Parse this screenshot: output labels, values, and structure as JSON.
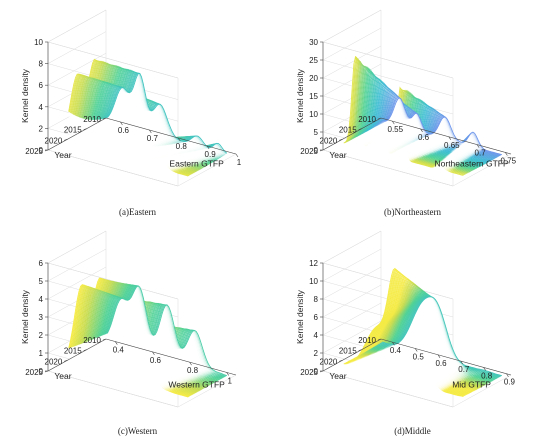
{
  "chart_data": [
    {
      "type": "surface3d",
      "caption": "(a)Eastern",
      "xlabel": "Eastern GTFP",
      "ylabel": "Year",
      "zlabel": "Kernel density",
      "x_ticks": [
        "0.6",
        "0.7",
        "0.8",
        "0.9",
        "1"
      ],
      "y_ticks": [
        "2010",
        "2015",
        "2020",
        "2025"
      ],
      "z_ticks": [
        "0",
        "2",
        "4",
        "6",
        "8",
        "10"
      ],
      "xlim": [
        0.55,
        1.0
      ],
      "ylim": [
        2010,
        2025
      ],
      "zlim": [
        0,
        10
      ],
      "years": [
        2011,
        2021
      ],
      "peaks_start": [
        {
          "x": 0.62,
          "h": 3.5,
          "w": 0.025
        },
        {
          "x": 0.68,
          "h": 5.0,
          "w": 0.02
        },
        {
          "x": 0.75,
          "h": 3.0,
          "w": 0.025
        },
        {
          "x": 0.88,
          "h": 1.0,
          "w": 0.02
        },
        {
          "x": 0.95,
          "h": 0.8,
          "w": 0.015
        }
      ],
      "peaks_end": [
        {
          "x": 0.6,
          "h": 6.5,
          "w": 0.025
        },
        {
          "x": 0.66,
          "h": 8.0,
          "w": 0.02
        },
        {
          "x": 0.72,
          "h": 6.5,
          "w": 0.02
        },
        {
          "x": 0.8,
          "h": 2.0,
          "w": 0.025
        },
        {
          "x": 0.88,
          "h": 1.0,
          "w": 0.02
        }
      ]
    },
    {
      "type": "surface3d",
      "caption": "(b)Northeastern",
      "xlabel": "Northeastern GTFP",
      "ylabel": "Year",
      "zlabel": "Kernel density",
      "x_ticks": [
        "0.55",
        "0.6",
        "0.65",
        "0.7",
        "0.75"
      ],
      "y_ticks": [
        "2010",
        "2015",
        "2020",
        "2025"
      ],
      "z_ticks": [
        "0",
        "5",
        "10",
        "15",
        "20",
        "25",
        "30"
      ],
      "xlim": [
        0.53,
        0.76
      ],
      "ylim": [
        2010,
        2025
      ],
      "zlim": [
        0,
        30
      ],
      "years": [
        2011,
        2021
      ],
      "peaks_start": [
        {
          "x": 0.57,
          "h": 8.0,
          "w": 0.01
        },
        {
          "x": 0.6,
          "h": 5.0,
          "w": 0.008
        },
        {
          "x": 0.65,
          "h": 6.0,
          "w": 0.01
        },
        {
          "x": 0.7,
          "h": 4.0,
          "w": 0.008
        }
      ],
      "peaks_end": [
        {
          "x": 0.56,
          "h": 25.0,
          "w": 0.006
        },
        {
          "x": 0.6,
          "h": 19.0,
          "w": 0.008
        },
        {
          "x": 0.64,
          "h": 20.0,
          "w": 0.006
        },
        {
          "x": 0.71,
          "h": 1.0,
          "w": 0.008
        }
      ]
    },
    {
      "type": "surface3d",
      "caption": "(c)Western",
      "xlabel": "Western GTFP",
      "ylabel": "Year",
      "zlabel": "Kernel density",
      "x_ticks": [
        "0.4",
        "0.6",
        "0.8",
        "1"
      ],
      "y_ticks": [
        "2010",
        "2015",
        "2020",
        "2025"
      ],
      "z_ticks": [
        "0",
        "1",
        "2",
        "3",
        "4",
        "5",
        "6"
      ],
      "xlim": [
        0.35,
        1.05
      ],
      "ylim": [
        2010,
        2025
      ],
      "zlim": [
        0,
        6
      ],
      "years": [
        2011,
        2021
      ],
      "peaks_start": [
        {
          "x": 0.45,
          "h": 2.5,
          "w": 0.04
        },
        {
          "x": 0.55,
          "h": 3.5,
          "w": 0.04
        },
        {
          "x": 0.7,
          "h": 3.0,
          "w": 0.04
        },
        {
          "x": 0.85,
          "h": 2.0,
          "w": 0.04
        }
      ],
      "peaks_end": [
        {
          "x": 0.45,
          "h": 4.5,
          "w": 0.04
        },
        {
          "x": 0.55,
          "h": 5.0,
          "w": 0.035
        },
        {
          "x": 0.65,
          "h": 4.5,
          "w": 0.035
        },
        {
          "x": 0.78,
          "h": 3.5,
          "w": 0.04
        }
      ]
    },
    {
      "type": "surface3d",
      "caption": "(d)Middle",
      "xlabel": "Mid GTFP",
      "ylabel": "Year",
      "zlabel": "Kernel density",
      "x_ticks": [
        "0.4",
        "0.5",
        "0.6",
        "0.7",
        "0.8",
        "0.9"
      ],
      "y_ticks": [
        "2010",
        "2015",
        "2020",
        "2025"
      ],
      "z_ticks": [
        "0",
        "2",
        "4",
        "6",
        "8",
        "10",
        "12"
      ],
      "xlim": [
        0.35,
        0.92
      ],
      "ylim": [
        2010,
        2025
      ],
      "zlim": [
        0,
        12
      ],
      "years": [
        2011,
        2021
      ],
      "peaks_start": [
        {
          "x": 0.55,
          "h": 5.0,
          "w": 0.05
        },
        {
          "x": 0.62,
          "h": 4.0,
          "w": 0.04
        }
      ],
      "peaks_end": [
        {
          "x": 0.52,
          "h": 5.0,
          "w": 0.05
        },
        {
          "x": 0.6,
          "h": 10.5,
          "w": 0.03
        },
        {
          "x": 0.7,
          "h": 4.0,
          "w": 0.04
        }
      ]
    }
  ]
}
